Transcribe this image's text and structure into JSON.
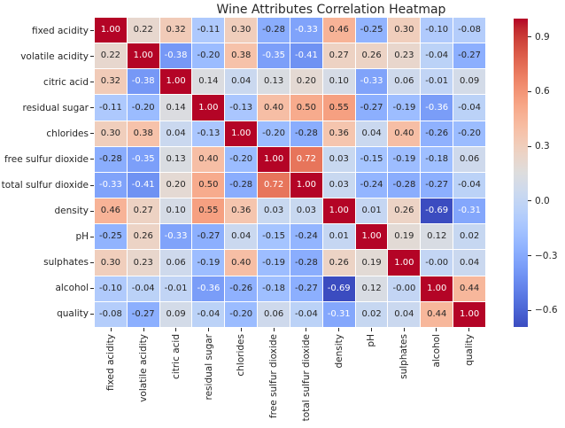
{
  "chart_data": {
    "type": "heatmap",
    "title": "Wine Attributes Correlation Heatmap",
    "categories": [
      "fixed acidity",
      "volatile acidity",
      "citric acid",
      "residual sugar",
      "chlorides",
      "free sulfur dioxide",
      "total sulfur dioxide",
      "density",
      "pH",
      "sulphates",
      "alcohol",
      "quality"
    ],
    "matrix": [
      [
        "1.00",
        "0.22",
        "0.32",
        "-0.11",
        "0.30",
        "-0.28",
        "-0.33",
        "0.46",
        "-0.25",
        "0.30",
        "-0.10",
        "-0.08"
      ],
      [
        "0.22",
        "1.00",
        "-0.38",
        "-0.20",
        "0.38",
        "-0.35",
        "-0.41",
        "0.27",
        "0.26",
        "0.23",
        "-0.04",
        "-0.27"
      ],
      [
        "0.32",
        "-0.38",
        "1.00",
        "0.14",
        "0.04",
        "0.13",
        "0.20",
        "0.10",
        "-0.33",
        "0.06",
        "-0.01",
        "0.09"
      ],
      [
        "-0.11",
        "-0.20",
        "0.14",
        "1.00",
        "-0.13",
        "0.40",
        "0.50",
        "0.55",
        "-0.27",
        "-0.19",
        "-0.36",
        "-0.04"
      ],
      [
        "0.30",
        "0.38",
        "0.04",
        "-0.13",
        "1.00",
        "-0.20",
        "-0.28",
        "0.36",
        "0.04",
        "0.40",
        "-0.26",
        "-0.20"
      ],
      [
        "-0.28",
        "-0.35",
        "0.13",
        "0.40",
        "-0.20",
        "1.00",
        "0.72",
        "0.03",
        "-0.15",
        "-0.19",
        "-0.18",
        "0.06"
      ],
      [
        "-0.33",
        "-0.41",
        "0.20",
        "0.50",
        "-0.28",
        "0.72",
        "1.00",
        "0.03",
        "-0.24",
        "-0.28",
        "-0.27",
        "-0.04"
      ],
      [
        "0.46",
        "0.27",
        "0.10",
        "0.55",
        "0.36",
        "0.03",
        "0.03",
        "1.00",
        "0.01",
        "0.26",
        "-0.69",
        "-0.31"
      ],
      [
        "-0.25",
        "0.26",
        "-0.33",
        "-0.27",
        "0.04",
        "-0.15",
        "-0.24",
        "0.01",
        "1.00",
        "0.19",
        "0.12",
        "0.02"
      ],
      [
        "0.30",
        "0.23",
        "0.06",
        "-0.19",
        "0.40",
        "-0.19",
        "-0.28",
        "0.26",
        "0.19",
        "1.00",
        "-0.00",
        "0.04"
      ],
      [
        "-0.10",
        "-0.04",
        "-0.01",
        "-0.36",
        "-0.26",
        "-0.18",
        "-0.27",
        "-0.69",
        "0.12",
        "-0.00",
        "1.00",
        "0.44"
      ],
      [
        "-0.08",
        "-0.27",
        "0.09",
        "-0.04",
        "-0.20",
        "0.06",
        "-0.04",
        "-0.31",
        "0.02",
        "0.04",
        "0.44",
        "1.00"
      ]
    ],
    "colormap": "coolwarm",
    "vmin": -0.69,
    "vmax": 1.0,
    "colorbar_ticks": [
      {
        "value": 0.9,
        "label": "0.9"
      },
      {
        "value": 0.6,
        "label": "0.6"
      },
      {
        "value": 0.3,
        "label": "0.3"
      },
      {
        "value": 0.0,
        "label": "0.0"
      },
      {
        "value": -0.3,
        "label": "−0.3"
      },
      {
        "value": -0.6,
        "label": "−0.6"
      }
    ],
    "colors": {
      "min_color": "#3b4cc0",
      "mid_color": "#dddcdc",
      "max_color": "#b40426",
      "annot_dark": "#262626",
      "annot_light": "#ffffff",
      "grid_lines": "#ffffff",
      "background": "#ffffff"
    },
    "layout": {
      "legend_position": "right-colorbar",
      "x_tick_rotation": 90,
      "grid": "off",
      "annotation_decimals": 2
    }
  }
}
